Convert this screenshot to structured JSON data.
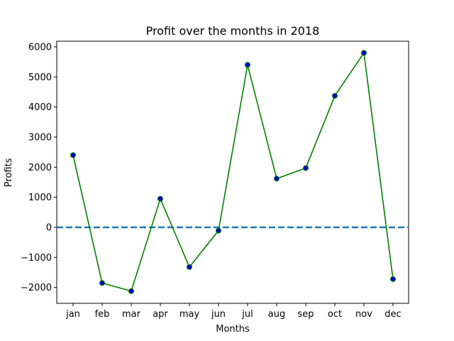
{
  "chart_data": {
    "type": "line",
    "title": "Profit over the months in 2018",
    "xlabel": "Months",
    "ylabel": "Profits",
    "categories": [
      "jan",
      "feb",
      "mar",
      "apr",
      "may",
      "jun",
      "jul",
      "aug",
      "sep",
      "oct",
      "nov",
      "dec"
    ],
    "series": [
      {
        "values": [
          2400,
          -1850,
          -2120,
          950,
          -1320,
          -110,
          5400,
          1620,
          1970,
          4370,
          5800,
          -1720
        ],
        "line_color": "#008000",
        "marker_face_color": "#0000cc",
        "marker_edge_color": "#008000",
        "marker": "circle"
      }
    ],
    "yticks": [
      6000,
      5000,
      4000,
      3000,
      2000,
      1000,
      0,
      -1000,
      -2000
    ],
    "ytick_labels": [
      "6000",
      "5000",
      "4000",
      "3000",
      "2000",
      "1000",
      "0",
      "−1000",
      "−2000"
    ],
    "ylim": [
      -2500,
      6200
    ],
    "reference_line": {
      "y": 0,
      "style": "dashed",
      "color": "#1f77b4"
    },
    "grid": false,
    "legend": false
  }
}
